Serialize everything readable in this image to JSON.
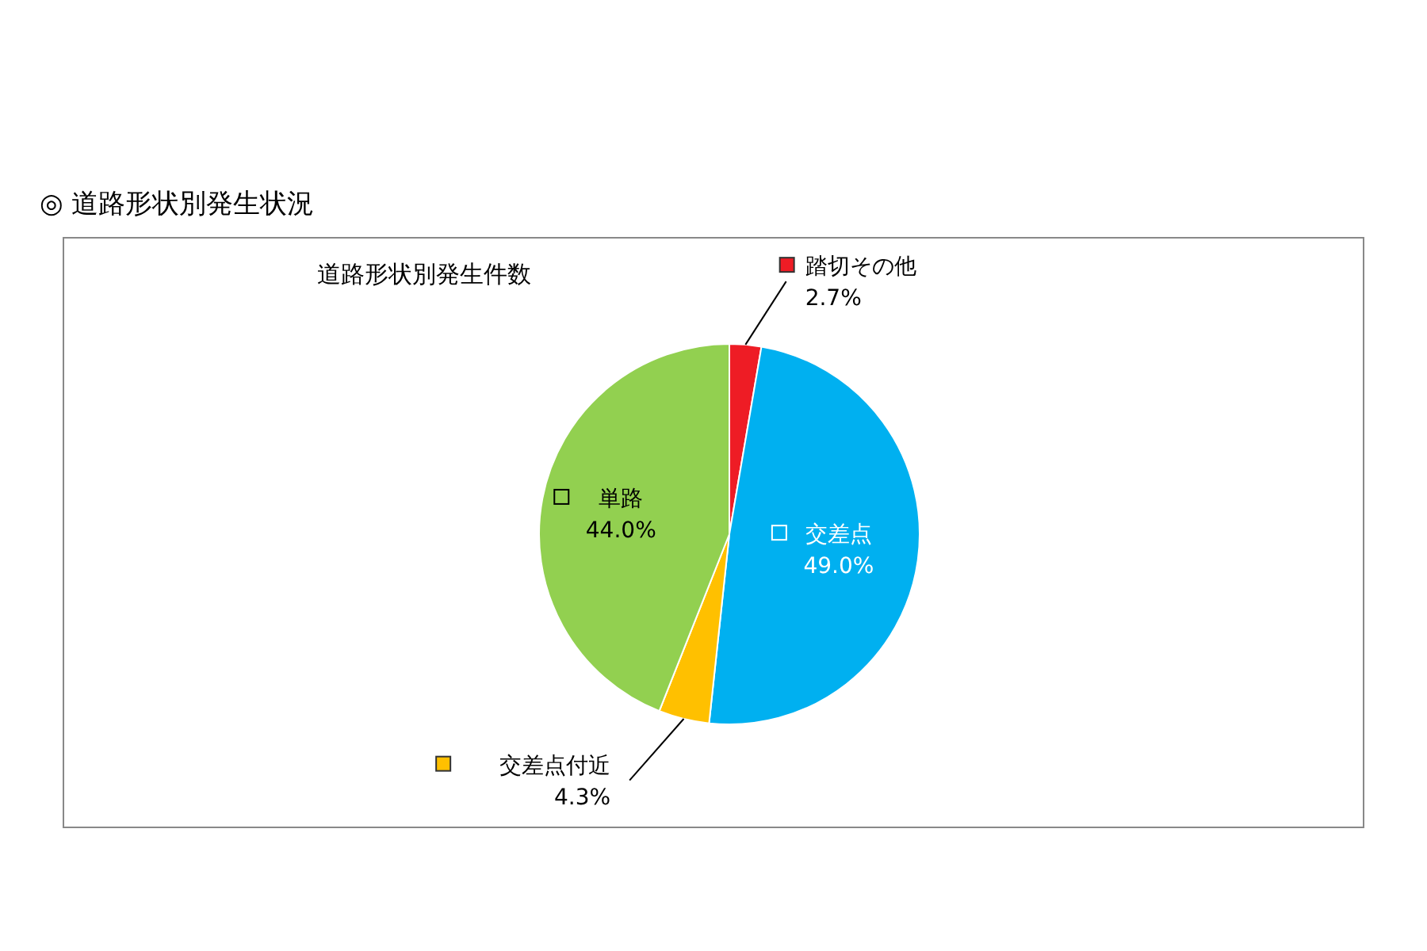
{
  "chart_data": {
    "type": "pie",
    "title": "◎ 道路形状別発生状況",
    "subtitle": "道路形状別発生件数",
    "legend": "top left",
    "categories": [
      "踏切その他",
      "交差点",
      "交差点付近",
      "単路"
    ],
    "values": [
      2.7,
      49.0,
      4.3,
      44.0
    ],
    "colors": [
      "#ee1c25",
      "#00b0f0",
      "#ffc000",
      "#92d050"
    ],
    "value_labels": [
      "2.7%",
      "49.0%",
      "4.3%",
      "44.0%"
    ]
  }
}
